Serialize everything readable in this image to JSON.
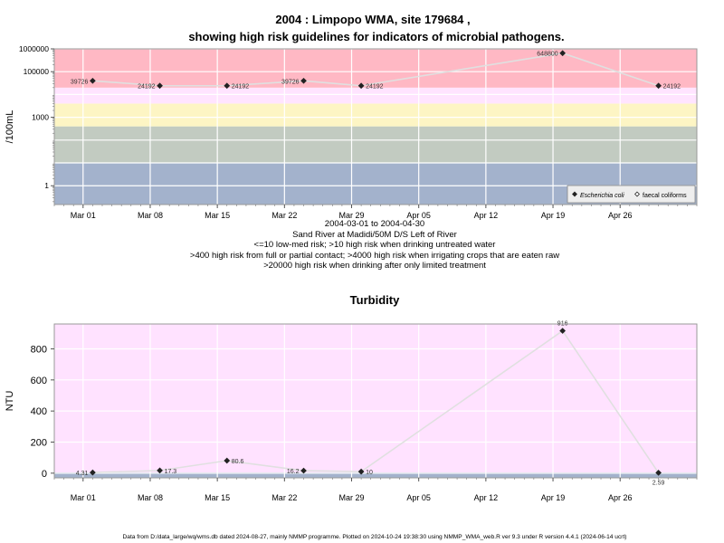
{
  "title_line1": "2004 : Limpopo WMA, site 179684 ,",
  "title_line2": "showing high risk guidelines for indicators of microbial pathogens.",
  "subtitle_lines": [
    "2004-03-01 to 2004-04-30",
    "Sand River at Madidi/50M D/S Left of River",
    "<=10 low-med risk; >10 high risk when drinking untreated water",
    ">400 high risk from full or partial contact; >4000 high risk when irrigating crops that are eaten raw",
    ">20000 high risk when drinking after only limited treatment"
  ],
  "footer": "Data from D:/data_large/wq/wms.db dated 2024-08-27, mainly NMMP programme. Plotted on 2024-10-24 19:38:30 using NMMP_WMA_web.R ver 9.3 under R version 4.4.1 (2024-06-14 ucrt)",
  "colors": {
    "band_drink_untreated": "#a3b2cc",
    "band_contact": "#c2cbc1",
    "band_irrigation": "#fdf5c4",
    "band_limited_treatment": "#ffe4ff",
    "band_high": "#ffb8c4",
    "turbidity_background": "#ffe2ff",
    "turbidity_base_band": "#a3b2cc",
    "line": "#e0e0e0",
    "point": "#222222"
  },
  "chart_data": [
    {
      "type": "scatter",
      "title": "",
      "xlabel": "",
      "ylabel": "/100mL",
      "y_scale": "log",
      "ylim": [
        0.15,
        1000000
      ],
      "xlim": [
        "2004-02-27",
        "2004-05-04"
      ],
      "grid": true,
      "x_ticks": [
        "Mar 01",
        "Mar 08",
        "Mar 15",
        "Mar 22",
        "Mar 29",
        "Apr 05",
        "Apr 12",
        "Apr 19",
        "Apr 26"
      ],
      "x_tick_dates": [
        "2004-03-01",
        "2004-03-08",
        "2004-03-15",
        "2004-03-22",
        "2004-03-29",
        "2004-04-05",
        "2004-04-12",
        "2004-04-19",
        "2004-04-26"
      ],
      "y_ticks": [
        "1000000",
        "100000",
        "1000",
        "1"
      ],
      "y_tick_values": [
        1000000,
        100000,
        1000,
        1
      ],
      "risk_thresholds": [
        10,
        400,
        4000,
        20000
      ],
      "legend_position": "bottom-right",
      "series": [
        {
          "name": "Escherichia coli",
          "marker": "filled-diamond",
          "points": [
            {
              "date": "2004-03-02",
              "value": 39726,
              "label": "39726",
              "label_side": "left"
            },
            {
              "date": "2004-03-09",
              "value": 24192,
              "label": "24192",
              "label_side": "left"
            },
            {
              "date": "2004-03-16",
              "value": 24192,
              "label": "24192",
              "label_side": "right"
            },
            {
              "date": "2004-03-24",
              "value": 39726,
              "label": "39726",
              "label_side": "left"
            },
            {
              "date": "2004-03-30",
              "value": 24192,
              "label": "24192",
              "label_side": "right"
            },
            {
              "date": "2004-04-20",
              "value": 648800,
              "label": "648800",
              "label_side": "left"
            },
            {
              "date": "2004-04-30",
              "value": 24192,
              "label": "24192",
              "label_side": "right"
            }
          ]
        },
        {
          "name": "faecal coliforms",
          "marker": "open-diamond",
          "points": []
        }
      ]
    },
    {
      "type": "scatter",
      "title": "Turbidity",
      "xlabel": "",
      "ylabel": "NTU",
      "ylim": [
        -30,
        960
      ],
      "xlim": [
        "2004-02-27",
        "2004-05-04"
      ],
      "grid": true,
      "x_ticks": [
        "Mar 01",
        "Mar 08",
        "Mar 15",
        "Mar 22",
        "Mar 29",
        "Apr 05",
        "Apr 12",
        "Apr 19",
        "Apr 26"
      ],
      "x_tick_dates": [
        "2004-03-01",
        "2004-03-08",
        "2004-03-15",
        "2004-03-22",
        "2004-03-29",
        "2004-04-05",
        "2004-04-12",
        "2004-04-19",
        "2004-04-26"
      ],
      "y_ticks": [
        "0",
        "200",
        "400",
        "600",
        "800"
      ],
      "y_tick_values": [
        0,
        200,
        400,
        600,
        800
      ],
      "series": [
        {
          "name": "",
          "marker": "filled-diamond",
          "points": [
            {
              "date": "2004-03-02",
              "value": 4.31,
              "label": "4.31",
              "label_side": "left"
            },
            {
              "date": "2004-03-09",
              "value": 17.3,
              "label": "17.3",
              "label_side": "right"
            },
            {
              "date": "2004-03-16",
              "value": 80.6,
              "label": "80.6",
              "label_side": "right"
            },
            {
              "date": "2004-03-24",
              "value": 16.2,
              "label": "16.2",
              "label_side": "left"
            },
            {
              "date": "2004-03-30",
              "value": 10,
              "label": "10",
              "label_side": "right"
            },
            {
              "date": "2004-04-20",
              "value": 916,
              "label": "916",
              "label_side": "top"
            },
            {
              "date": "2004-04-30",
              "value": 2.59,
              "label": "2.59",
              "label_side": "bottom"
            }
          ]
        }
      ]
    }
  ]
}
